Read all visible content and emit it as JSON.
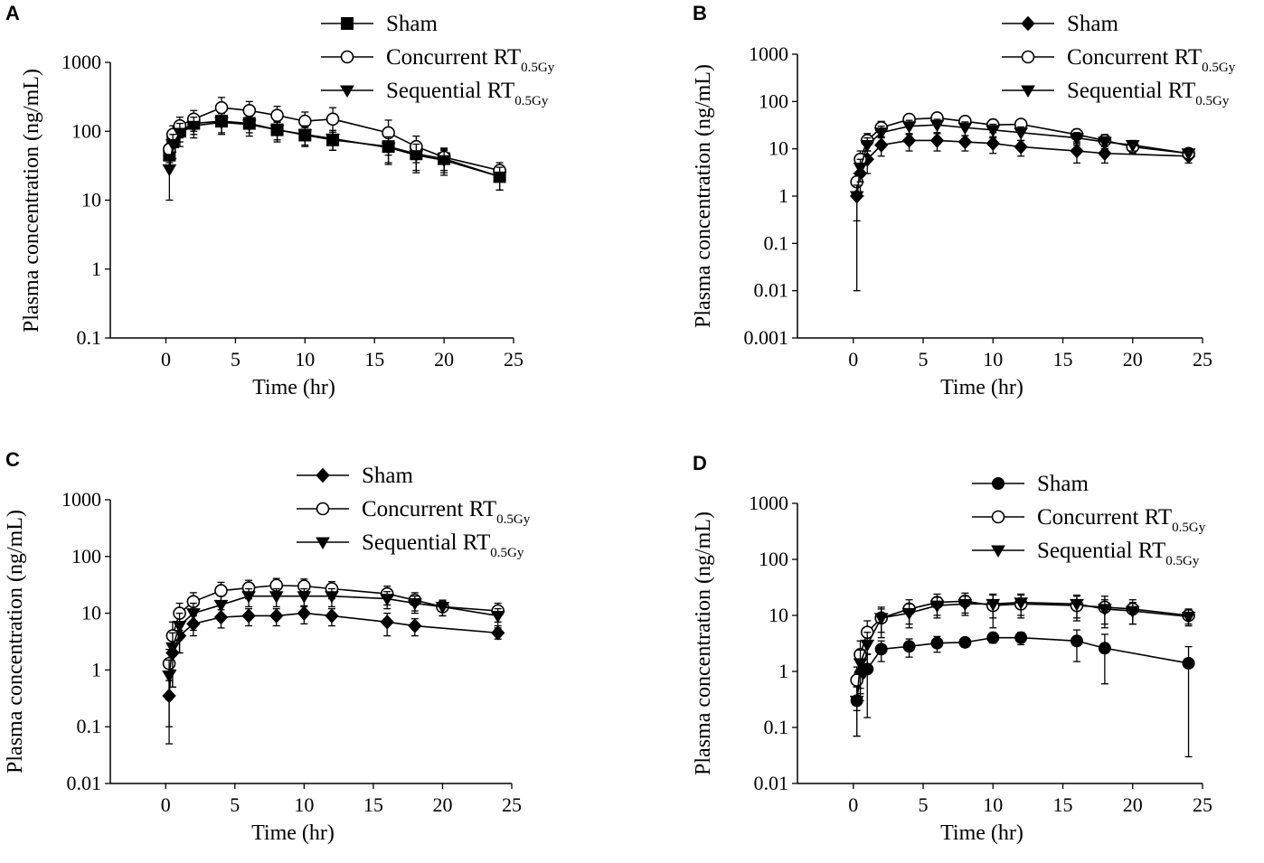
{
  "chart_data": [
    {
      "panel": "A",
      "type": "line",
      "xlabel": "Time (hr)",
      "ylabel": "Plasma concentration (ng/mL)",
      "yscale": "log",
      "ylim": [
        0.1,
        1000
      ],
      "yticks": [
        "0.1",
        "1",
        "10",
        "100",
        "1000"
      ],
      "xlim": [
        -4,
        25
      ],
      "xticks": [
        "0",
        "5",
        "10",
        "15",
        "20",
        "25"
      ],
      "legend_position": "top-right",
      "series": [
        {
          "name": "Sham",
          "sub": "",
          "marker": "square-filled",
          "x": [
            0.25,
            0.5,
            1,
            2,
            4,
            6,
            8,
            10,
            12,
            16,
            18,
            20,
            24
          ],
          "y": [
            45,
            70,
            100,
            130,
            140,
            130,
            105,
            88,
            75,
            60,
            47,
            40,
            22
          ],
          "err": [
            15,
            20,
            30,
            40,
            45,
            35,
            30,
            25,
            22,
            25,
            20,
            15,
            8
          ]
        },
        {
          "name": "Concurrent RT",
          "sub": "0.5Gy",
          "marker": "circle-open",
          "x": [
            0.25,
            0.5,
            1,
            2,
            4,
            6,
            8,
            10,
            12,
            16,
            18,
            20,
            24
          ],
          "y": [
            55,
            90,
            120,
            150,
            220,
            200,
            170,
            140,
            150,
            95,
            60,
            42,
            27
          ],
          "err": [
            20,
            30,
            40,
            50,
            90,
            70,
            60,
            50,
            70,
            50,
            25,
            15,
            8
          ]
        },
        {
          "name": "Sequential RT",
          "sub": "0.5Gy",
          "marker": "triangle-down-filled",
          "x": [
            0.25,
            0.5,
            1,
            2,
            4,
            6,
            8,
            10,
            12,
            16,
            18,
            20,
            24
          ],
          "y": [
            28,
            65,
            95,
            120,
            135,
            125,
            105,
            90,
            78,
            58,
            45,
            38,
            22
          ],
          "err": [
            18,
            25,
            35,
            40,
            45,
            40,
            35,
            30,
            25,
            25,
            20,
            15,
            8
          ]
        }
      ]
    },
    {
      "panel": "B",
      "type": "line",
      "xlabel": "Time (hr)",
      "ylabel": "Plasma concentration (ng/mL)",
      "yscale": "log",
      "ylim": [
        0.001,
        1000
      ],
      "yticks": [
        "0.001",
        "0.01",
        "0.1",
        "1",
        "10",
        "100",
        "1000"
      ],
      "xlim": [
        -4,
        25
      ],
      "xticks": [
        "0",
        "5",
        "10",
        "15",
        "20",
        "25"
      ],
      "legend_position": "top-right",
      "series": [
        {
          "name": "Sham",
          "sub": "",
          "marker": "diamond-filled",
          "x": [
            0.25,
            0.5,
            1,
            2,
            4,
            6,
            8,
            10,
            12,
            16,
            18,
            24
          ],
          "y": [
            1,
            3,
            6,
            12,
            15,
            15,
            14,
            13,
            11,
            9,
            8,
            7
          ],
          "err": [
            0.99,
            2,
            3,
            5,
            6,
            6,
            5,
            5,
            4,
            4,
            3,
            2
          ]
        },
        {
          "name": "Concurrent RT",
          "sub": "0.5Gy",
          "marker": "circle-open",
          "x": [
            0.25,
            0.5,
            1,
            2,
            4,
            6,
            8,
            10,
            12,
            16,
            18,
            20,
            24
          ],
          "y": [
            2,
            6,
            15,
            28,
            42,
            45,
            38,
            32,
            33,
            20,
            15,
            11,
            8
          ],
          "err": [
            1,
            3,
            6,
            10,
            12,
            12,
            10,
            10,
            8,
            6,
            5,
            3,
            2
          ]
        },
        {
          "name": "Sequential RT",
          "sub": "0.5Gy",
          "marker": "triangle-down-filled",
          "x": [
            0.25,
            0.5,
            1,
            2,
            4,
            6,
            8,
            10,
            12,
            16,
            18,
            20,
            24
          ],
          "y": [
            1,
            4,
            12,
            22,
            30,
            32,
            28,
            25,
            22,
            17,
            14,
            12,
            8
          ],
          "err": [
            0.7,
            2,
            5,
            8,
            10,
            10,
            9,
            8,
            7,
            5,
            4,
            3,
            2
          ]
        }
      ]
    },
    {
      "panel": "C",
      "type": "line",
      "xlabel": "Time (hr)",
      "ylabel": "Plasma concentration (ng/mL)",
      "yscale": "log",
      "ylim": [
        0.01,
        1000
      ],
      "yticks": [
        "0.01",
        "0.1",
        "1",
        "10",
        "100",
        "1000"
      ],
      "xlim": [
        -4,
        25
      ],
      "xticks": [
        "0",
        "5",
        "10",
        "15",
        "20",
        "25"
      ],
      "legend_position": "top-right",
      "series": [
        {
          "name": "Sham",
          "sub": "",
          "marker": "diamond-filled",
          "x": [
            0.25,
            0.5,
            1,
            2,
            4,
            6,
            8,
            10,
            12,
            16,
            18,
            24
          ],
          "y": [
            0.35,
            2,
            4,
            6.5,
            8.5,
            9,
            9,
            10,
            9,
            7,
            6,
            4.5
          ],
          "err": [
            0.3,
            1.5,
            2,
            2.5,
            3,
            3,
            3,
            3.5,
            3,
            3,
            2,
            1
          ]
        },
        {
          "name": "Concurrent RT",
          "sub": "0.5Gy",
          "marker": "circle-open",
          "x": [
            0.25,
            0.5,
            1,
            2,
            4,
            6,
            8,
            10,
            12,
            16,
            18,
            20,
            24
          ],
          "y": [
            1.3,
            4,
            10,
            16,
            25,
            28,
            31,
            30,
            27,
            22,
            17,
            13,
            11
          ],
          "err": [
            1,
            3,
            5,
            7,
            10,
            10,
            10,
            10,
            9,
            8,
            6,
            4,
            4
          ]
        },
        {
          "name": "Sequential RT",
          "sub": "0.5Gy",
          "marker": "triangle-down-filled",
          "x": [
            0.25,
            0.5,
            1,
            2,
            4,
            6,
            8,
            10,
            12,
            16,
            18,
            20,
            24
          ],
          "y": [
            0.8,
            2.5,
            6,
            10,
            14,
            20,
            20,
            20,
            20,
            18,
            15,
            13,
            9
          ],
          "err": [
            0.7,
            2,
            4,
            5,
            6,
            7,
            7,
            7,
            7,
            6,
            5,
            4,
            3
          ]
        }
      ]
    },
    {
      "panel": "D",
      "type": "line",
      "xlabel": "Time (hr)",
      "ylabel": "Plasma concentration (ng/mL)",
      "yscale": "log",
      "ylim": [
        0.01,
        1000
      ],
      "yticks": [
        "0.01",
        "0.1",
        "1",
        "10",
        "100",
        "1000"
      ],
      "xlim": [
        -4,
        25
      ],
      "xticks": [
        "0",
        "5",
        "10",
        "15",
        "20",
        "25"
      ],
      "legend_position": "top-right",
      "series": [
        {
          "name": "Sham",
          "sub": "",
          "marker": "circle-filled",
          "x": [
            0.25,
            0.5,
            1,
            2,
            4,
            6,
            8,
            10,
            12,
            16,
            18,
            24
          ],
          "y": [
            0.3,
            0.9,
            1.1,
            2.5,
            2.8,
            3.2,
            3.3,
            4,
            4,
            3.5,
            2.6,
            1.4
          ],
          "err": [
            0.23,
            0.6,
            0.95,
            1,
            1,
            1,
            0.6,
            0.8,
            1,
            2,
            2,
            1.37
          ]
        },
        {
          "name": "Concurrent RT",
          "sub": "0.5Gy",
          "marker": "circle-open",
          "x": [
            0.25,
            0.5,
            1,
            2,
            4,
            6,
            8,
            10,
            12,
            16,
            18,
            20,
            24
          ],
          "y": [
            0.7,
            2,
            5,
            9,
            13,
            17,
            18,
            15,
            16,
            15,
            14,
            13,
            10
          ],
          "err": [
            0.5,
            1.5,
            3,
            5,
            6,
            7,
            7,
            9,
            7,
            7,
            8,
            6,
            3
          ]
        },
        {
          "name": "Sequential RT",
          "sub": "0.5Gy",
          "marker": "triangle-down-filled",
          "x": [
            0.25,
            0.5,
            1,
            2,
            4,
            6,
            8,
            10,
            12,
            16,
            18,
            20,
            24
          ],
          "y": [
            0.3,
            1.4,
            3,
            9,
            11,
            15,
            16,
            16,
            17,
            16,
            13,
            12,
            9.5
          ],
          "err": [
            0.23,
            1,
            2,
            4,
            5,
            6,
            6,
            7,
            7,
            7,
            6,
            5,
            3
          ]
        }
      ]
    }
  ]
}
